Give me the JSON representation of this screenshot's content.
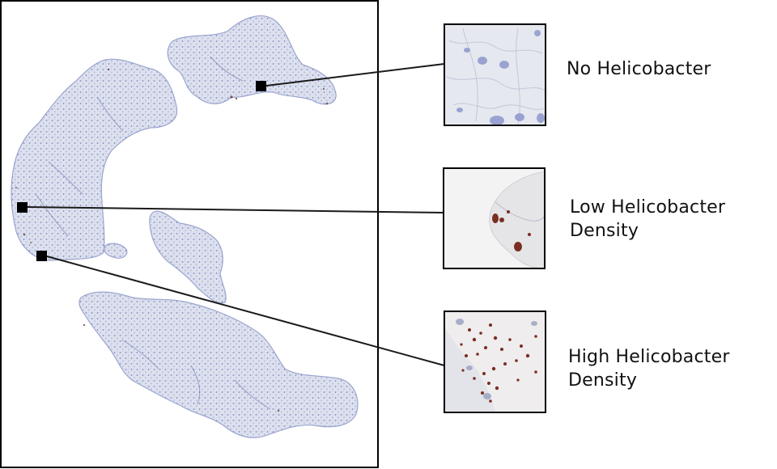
{
  "figure": {
    "panels": [
      {
        "id": "none",
        "label_lines": [
          "No Helicobacter"
        ]
      },
      {
        "id": "low",
        "label_lines": [
          "Low Helicobacter",
          "Density"
        ]
      },
      {
        "id": "high",
        "label_lines": [
          "High Helicobacter",
          "Density"
        ]
      }
    ]
  },
  "colors": {
    "frame": "#000000",
    "tissue_fill": "#d7dcea",
    "tissue_stroke": "#9aa4cf",
    "tissue_speckle": "#6f7ab8",
    "hema_nuclei": "#8d96cc",
    "dab_stain": "#7a2e22",
    "connector": "#1a1a1a"
  }
}
